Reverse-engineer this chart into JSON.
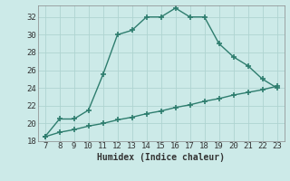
{
  "xlabel": "Humidex (Indice chaleur)",
  "x": [
    7,
    8,
    9,
    10,
    11,
    12,
    13,
    14,
    15,
    16,
    17,
    18,
    19,
    20,
    21,
    22,
    23
  ],
  "y_curve": [
    18.5,
    20.5,
    20.5,
    21.5,
    25.5,
    30,
    30.5,
    32,
    32,
    33,
    32,
    32,
    29,
    27.5,
    26.5,
    25,
    24
  ],
  "y_line": [
    18.5,
    19.0,
    19.3,
    19.7,
    20.0,
    20.4,
    20.7,
    21.1,
    21.4,
    21.8,
    22.1,
    22.5,
    22.8,
    23.2,
    23.5,
    23.8,
    24.2
  ],
  "xlim_min": 7,
  "xlim_max": 23,
  "ylim_min": 18,
  "ylim_max": 33,
  "yticks": [
    18,
    20,
    22,
    24,
    26,
    28,
    30,
    32
  ],
  "xticks": [
    7,
    8,
    9,
    10,
    11,
    12,
    13,
    14,
    15,
    16,
    17,
    18,
    19,
    20,
    21,
    22,
    23
  ],
  "line_color": "#2e7d6e",
  "bg_color": "#cceae8",
  "grid_color": "#afd4d1",
  "spine_color": "#888888",
  "tick_color": "#333333",
  "label_fontsize": 6.5,
  "xlabel_fontsize": 7.0,
  "marker": "+",
  "marker_size": 5,
  "linewidth": 1.0
}
